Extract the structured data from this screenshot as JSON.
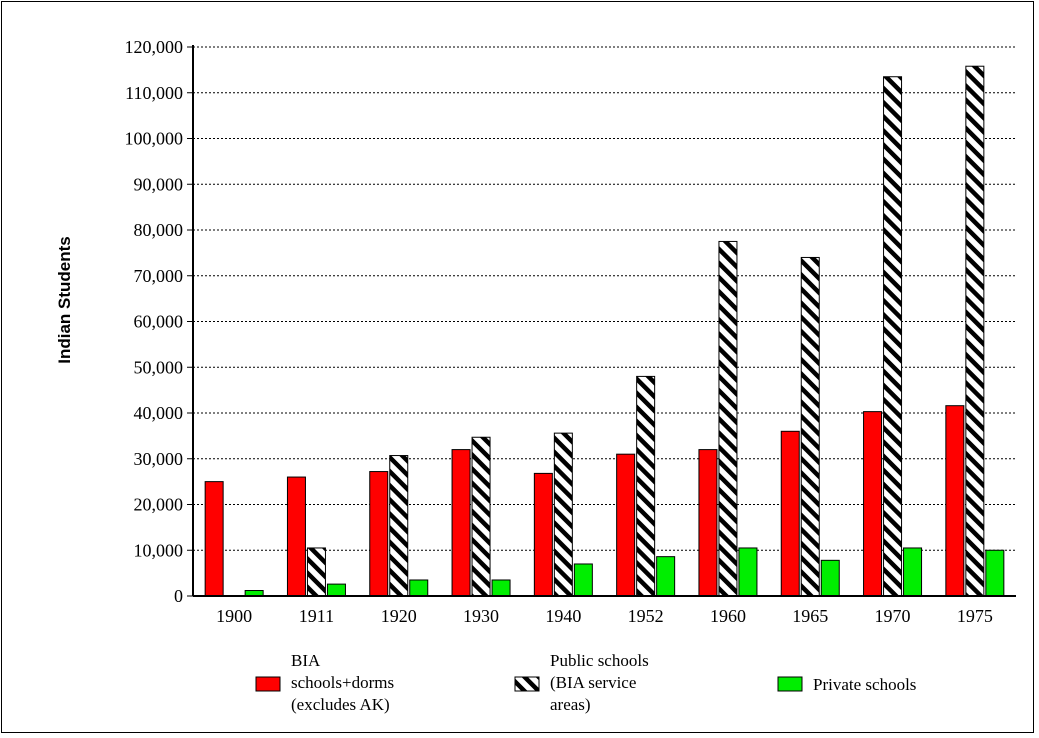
{
  "chart_data": {
    "type": "bar",
    "title": "",
    "xlabel": "",
    "ylabel": "Indian Students",
    "ylim": [
      0,
      120000
    ],
    "yticks": [
      0,
      10000,
      20000,
      30000,
      40000,
      50000,
      60000,
      70000,
      80000,
      90000,
      100000,
      110000,
      120000
    ],
    "ytick_labels": [
      "0",
      "10,000",
      "20,000",
      "30,000",
      "40,000",
      "50,000",
      "60,000",
      "70,000",
      "80,000",
      "90,000",
      "100,000",
      "110,000",
      "120,000"
    ],
    "grid": true,
    "legend_position": "bottom",
    "categories": [
      "1900",
      "1911",
      "1920",
      "1930",
      "1940",
      "1952",
      "1960",
      "1965",
      "1970",
      "1975"
    ],
    "series": [
      {
        "name": "BIA schools+dorms (excludes AK)",
        "legend_lines": [
          "BIA",
          "schools+dorms",
          "(excludes AK)"
        ],
        "color": "#ff0000",
        "pattern": "solid",
        "values": [
          25000,
          26000,
          27200,
          32000,
          26800,
          31000,
          32000,
          36000,
          40300,
          41600
        ]
      },
      {
        "name": "Public schools (BIA service areas)",
        "legend_lines": [
          "Public schools",
          "(BIA service",
          "areas)"
        ],
        "color": "#000000",
        "pattern": "diagonal-hatch",
        "values": [
          0,
          10500,
          30700,
          34700,
          35600,
          48000,
          77500,
          74000,
          113500,
          115800
        ]
      },
      {
        "name": "Private schools",
        "legend_lines": [
          "Private schools"
        ],
        "color": "#00ee00",
        "pattern": "solid",
        "values": [
          1200,
          2600,
          3500,
          3500,
          7000,
          8600,
          10500,
          7800,
          10500,
          10000
        ]
      }
    ]
  }
}
